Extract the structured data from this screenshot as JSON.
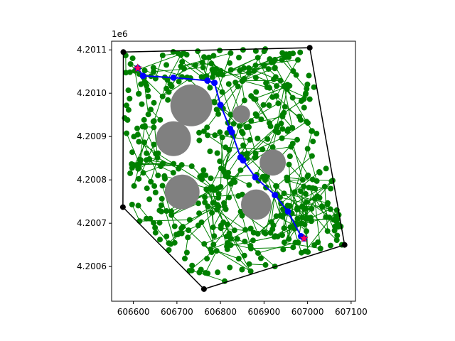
{
  "chart_data": {
    "type": "scatter",
    "title": "",
    "xlabel": "",
    "ylabel": "",
    "y_offset_label": "1e6",
    "xlim": [
      606550,
      607110
    ],
    "ylim": [
      4200520,
      4201120
    ],
    "x_ticks": [
      606600,
      606700,
      606800,
      606900,
      607000,
      607100
    ],
    "x_tick_labels": [
      "606600",
      "606700",
      "606800",
      "606900",
      "607000",
      "607100"
    ],
    "y_ticks": [
      4200600,
      4200700,
      4200800,
      4200900,
      4201000,
      4201100
    ],
    "y_tick_labels": [
      "4.2006",
      "4.2007",
      "4.2008",
      "4.2009",
      "4.2010",
      "4.2011"
    ],
    "grid": false,
    "colors": {
      "boundary": "#000000",
      "graph": "#008000",
      "obstacle": "#808080",
      "path": "#0000ff",
      "endpoint": "#ff0066"
    },
    "boundary_polygon": [
      [
        606577,
        4201095
      ],
      [
        607005,
        4201105
      ],
      [
        607085,
        4200650
      ],
      [
        606762,
        4200548
      ],
      [
        606576,
        4200737
      ]
    ],
    "obstacles": [
      {
        "x": 606733,
        "y": 4200972,
        "r": 48
      },
      {
        "x": 606692,
        "y": 4200895,
        "r": 40
      },
      {
        "x": 606712,
        "y": 4200772,
        "r": 40
      },
      {
        "x": 606882,
        "y": 4200743,
        "r": 35
      },
      {
        "x": 606920,
        "y": 4200840,
        "r": 30
      },
      {
        "x": 606848,
        "y": 4200952,
        "r": 20
      }
    ],
    "path": [
      [
        606610,
        4201058
      ],
      [
        606622,
        4201040
      ],
      [
        606692,
        4201036
      ],
      [
        606770,
        4201029
      ],
      [
        606786,
        4201024
      ],
      [
        606800,
        4200973
      ],
      [
        606822,
        4200918
      ],
      [
        606826,
        4200910
      ],
      [
        606846,
        4200852
      ],
      [
        606852,
        4200845
      ],
      [
        606880,
        4200806
      ],
      [
        606925,
        4200765
      ],
      [
        606955,
        4200727
      ],
      [
        606985,
        4200670
      ],
      [
        606992,
        4200665
      ]
    ],
    "start": [
      606610,
      4201058
    ],
    "goal": [
      606992,
      4200665
    ]
  }
}
